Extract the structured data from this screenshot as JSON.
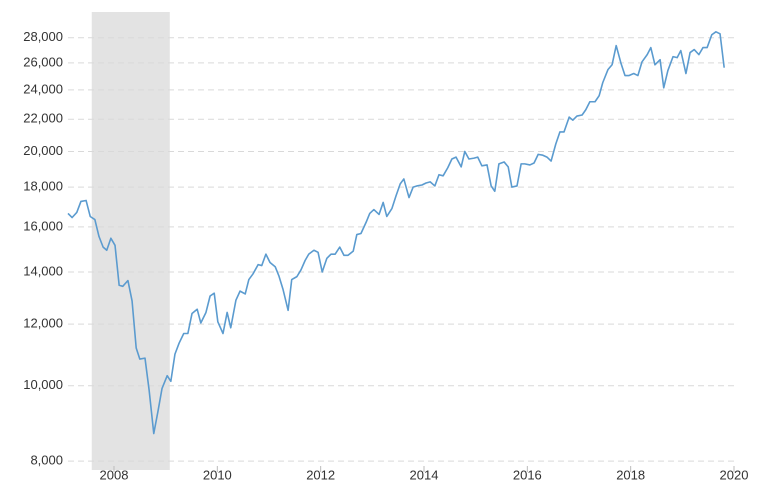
{
  "chart_data": {
    "type": "line",
    "log_y": true,
    "grid": true,
    "color": "#5b9bcf",
    "shade_color": "#e3e3e3",
    "shaded_regions": [
      [
        2007.57,
        2009.08
      ]
    ],
    "xlim": [
      2007.11,
      2020
    ],
    "xticks": [
      2008,
      2010,
      2012,
      2014,
      2016,
      2018,
      2020
    ],
    "ylim": [
      7792,
      30220
    ],
    "yticks": [
      {
        "value": 8000,
        "label": "8,000"
      },
      {
        "value": 10000,
        "label": "10,000"
      },
      {
        "value": 12000,
        "label": "12,000"
      },
      {
        "value": 14000,
        "label": "14,000"
      },
      {
        "value": 16000,
        "label": "16,000"
      },
      {
        "value": 18000,
        "label": "18,000"
      },
      {
        "value": 20000,
        "label": "20,000"
      },
      {
        "value": 22000,
        "label": "22,000"
      },
      {
        "value": 24000,
        "label": "24,000"
      },
      {
        "value": 26000,
        "label": "26,000"
      },
      {
        "value": 28000,
        "label": "28,000"
      }
    ],
    "x": [
      2007.11,
      2007.19,
      2007.28,
      2007.36,
      2007.46,
      2007.54,
      2007.63,
      2007.71,
      2007.79,
      2007.86,
      2007.94,
      2008.02,
      2008.1,
      2008.17,
      2008.27,
      2008.35,
      2008.43,
      2008.5,
      2008.6,
      2008.68,
      2008.77,
      2008.85,
      2008.93,
      2009.03,
      2009.1,
      2009.18,
      2009.26,
      2009.35,
      2009.43,
      2009.51,
      2009.61,
      2009.68,
      2009.78,
      2009.86,
      2009.94,
      2010.01,
      2010.11,
      2010.19,
      2010.26,
      2010.36,
      2010.44,
      2010.54,
      2010.61,
      2010.69,
      2010.79,
      2010.86,
      2010.94,
      2011.02,
      2011.12,
      2011.19,
      2011.27,
      2011.37,
      2011.44,
      2011.54,
      2011.62,
      2011.7,
      2011.77,
      2011.87,
      2011.95,
      2012.03,
      2012.12,
      2012.2,
      2012.28,
      2012.37,
      2012.45,
      2012.53,
      2012.63,
      2012.7,
      2012.78,
      2012.88,
      2012.95,
      2013.03,
      2013.13,
      2013.21,
      2013.28,
      2013.38,
      2013.46,
      2013.54,
      2013.61,
      2013.71,
      2013.79,
      2013.86,
      2013.96,
      2014.04,
      2014.12,
      2014.21,
      2014.29,
      2014.37,
      2014.46,
      2014.54,
      2014.62,
      2014.72,
      2014.79,
      2014.87,
      2014.97,
      2015.04,
      2015.12,
      2015.22,
      2015.3,
      2015.37,
      2015.45,
      2015.55,
      2015.63,
      2015.7,
      2015.8,
      2015.88,
      2015.95,
      2016.05,
      2016.13,
      2016.21,
      2016.3,
      2016.38,
      2016.46,
      2016.55,
      2016.63,
      2016.71,
      2016.81,
      2016.88,
      2016.96,
      2017.06,
      2017.13,
      2017.21,
      2017.31,
      2017.39,
      2017.46,
      2017.56,
      2017.64,
      2017.72,
      2017.81,
      2017.89,
      2017.97,
      2018.06,
      2018.14,
      2018.22,
      2018.32,
      2018.39,
      2018.47,
      2018.57,
      2018.64,
      2018.72,
      2018.82,
      2018.9,
      2018.97,
      2019.07,
      2019.15,
      2019.23,
      2019.32,
      2019.4,
      2019.48,
      2019.57,
      2019.65,
      2019.73,
      2019.81
    ],
    "values": [
      16650,
      16450,
      16700,
      17250,
      17300,
      16500,
      16350,
      15550,
      15070,
      14930,
      15470,
      15150,
      13460,
      13420,
      13650,
      12850,
      11180,
      10820,
      10850,
      9870,
      8680,
      9260,
      9920,
      10300,
      10130,
      10980,
      11340,
      11670,
      11670,
      12380,
      12540,
      12040,
      12420,
      13040,
      13150,
      12080,
      11670,
      12420,
      11870,
      12880,
      13230,
      13120,
      13690,
      13920,
      14310,
      14270,
      14760,
      14400,
      14220,
      13850,
      13310,
      12500,
      13690,
      13810,
      14090,
      14490,
      14760,
      14930,
      14840,
      14000,
      14580,
      14760,
      14760,
      15070,
      14710,
      14710,
      14890,
      15640,
      15690,
      16220,
      16650,
      16840,
      16600,
      17200,
      16500,
      16900,
      17550,
      18170,
      18440,
      17450,
      18000,
      18060,
      18110,
      18220,
      18280,
      18060,
      18670,
      18610,
      19060,
      19560,
      19670,
      19110,
      20000,
      19560,
      19610,
      19670,
      19170,
      19220,
      18060,
      17780,
      19280,
      19390,
      19110,
      18000,
      18060,
      19280,
      19280,
      19220,
      19330,
      19830,
      19780,
      19670,
      19440,
      20440,
      21190,
      21190,
      22140,
      21940,
      22210,
      22280,
      22620,
      23170,
      23170,
      23590,
      24520,
      25480,
      25850,
      27360,
      26000,
      25040,
      25040,
      25190,
      25040,
      26080,
      26640,
      27200,
      25850,
      26240,
      24150,
      25410,
      26480,
      26400,
      26960,
      25190,
      26800,
      27040,
      26640,
      27200,
      27200,
      28250,
      28500,
      28330,
      25630
    ]
  }
}
